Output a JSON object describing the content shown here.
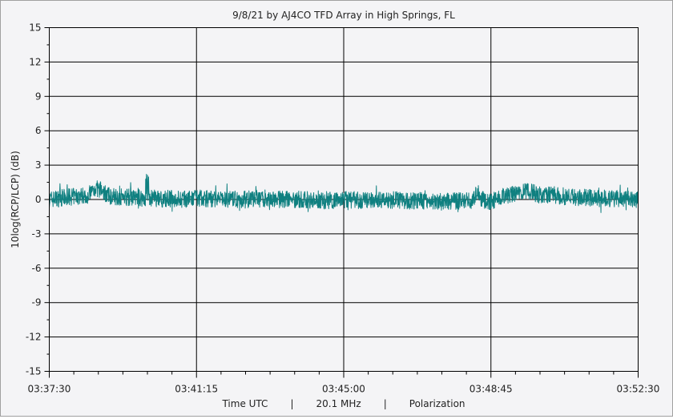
{
  "chart_data": {
    "type": "line",
    "title": "9/8/21  by  AJ4CO TFD Array  in  High Springs, FL",
    "ylabel": "10log(RCP/LCP) (dB)",
    "xlabel_parts": [
      "Time UTC",
      "|",
      "20.1 MHz",
      "|",
      "Polarization"
    ],
    "x_ticks": [
      "03:37:30",
      "03:41:15",
      "03:45:00",
      "03:48:45",
      "03:52:30"
    ],
    "y_ticks": [
      "15",
      "12",
      "9",
      "6",
      "3",
      "0",
      "-3",
      "-6",
      "-9",
      "-12",
      "-15"
    ],
    "xlim": [
      "03:37:30",
      "03:52:30"
    ],
    "ylim": [
      -15,
      15
    ],
    "grid": true,
    "line_color": "#0f8080",
    "series": [
      {
        "x": [
          "03:37:30",
          "03:38:00",
          "03:38:30",
          "03:38:40",
          "03:38:50",
          "03:39:00",
          "03:39:30",
          "03:40:00",
          "03:40:30",
          "03:41:00",
          "03:41:15",
          "03:41:30",
          "03:42:00",
          "03:42:30",
          "03:43:00",
          "03:43:30",
          "03:44:00",
          "03:44:30",
          "03:45:00",
          "03:45:30",
          "03:46:00",
          "03:46:30",
          "03:47:00",
          "03:47:30",
          "03:48:00",
          "03:48:30",
          "03:48:45",
          "03:49:00",
          "03:49:30",
          "03:49:45",
          "03:50:00",
          "03:50:30",
          "03:51:00",
          "03:51:30",
          "03:52:00",
          "03:52:30"
        ],
        "y": [
          0.0,
          0.2,
          0.4,
          1.0,
          0.8,
          0.3,
          0.2,
          0.1,
          0.1,
          0.0,
          0.1,
          0.1,
          0.0,
          0.0,
          0.1,
          0.0,
          0.0,
          -0.1,
          0.0,
          -0.1,
          0.0,
          -0.1,
          -0.1,
          -0.2,
          -0.1,
          0.0,
          -0.2,
          0.2,
          0.6,
          0.7,
          0.4,
          0.3,
          0.2,
          0.1,
          0.1,
          0.0
        ]
      }
    ]
  }
}
